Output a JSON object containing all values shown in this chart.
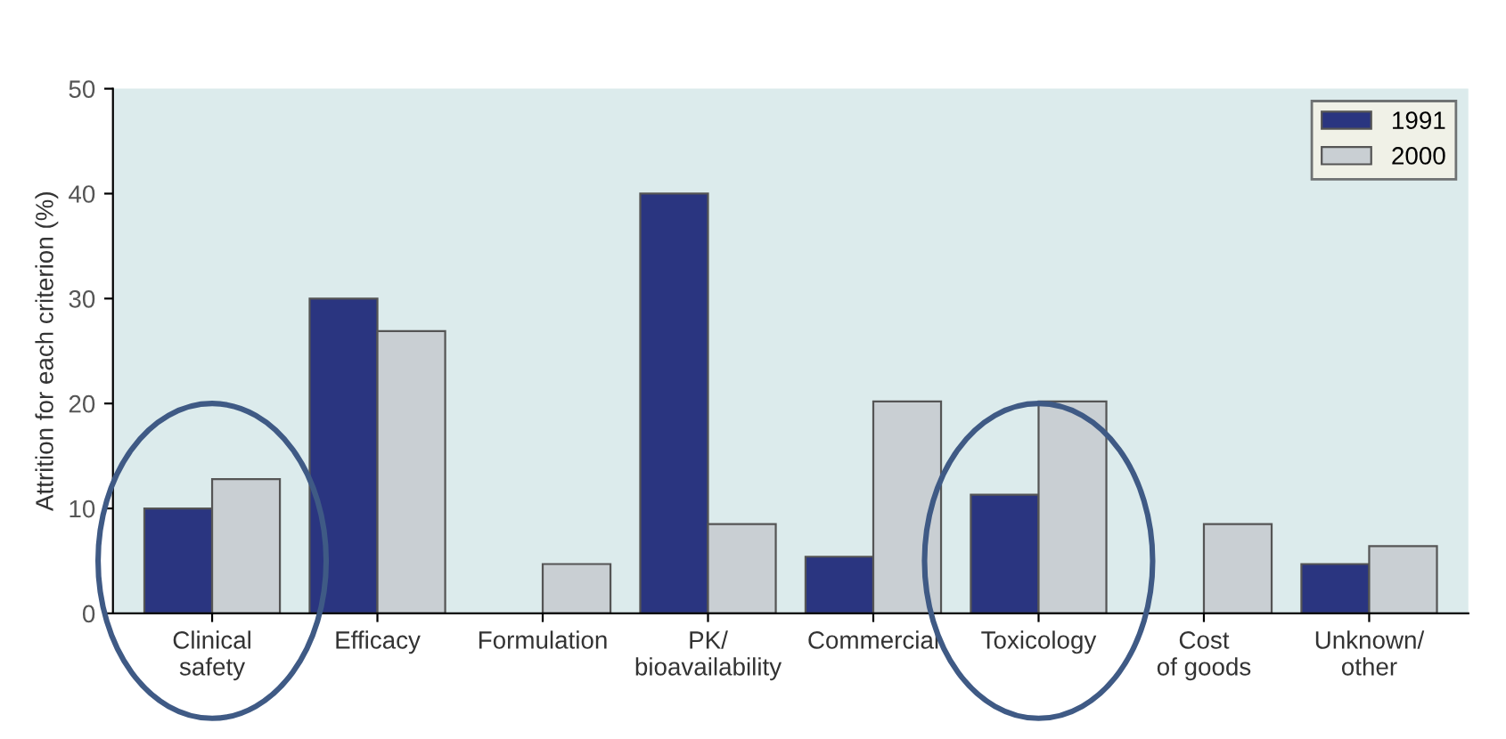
{
  "chart_data": {
    "type": "bar",
    "ylabel": "Attrition for each criterion (%)",
    "categories": [
      "Clinical\nsafety",
      "Efficacy",
      "Formulation",
      "PK/\nbioavailability",
      "Commercial",
      "Toxicology",
      "Cost\nof goods",
      "Unknown/\nother"
    ],
    "series": [
      {
        "name": "1991",
        "color": "#2a3580",
        "values": [
          10.0,
          30.0,
          null,
          40.0,
          5.4,
          11.3,
          null,
          4.7
        ]
      },
      {
        "name": "2000",
        "color": "#c9cfd3",
        "values": [
          12.8,
          26.9,
          4.7,
          8.5,
          20.2,
          20.2,
          8.5,
          6.4
        ]
      }
    ],
    "ylim": [
      0,
      50
    ],
    "yticks": [
      0,
      10,
      20,
      30,
      40,
      50
    ],
    "grid": false,
    "legend": "top right"
  }
}
